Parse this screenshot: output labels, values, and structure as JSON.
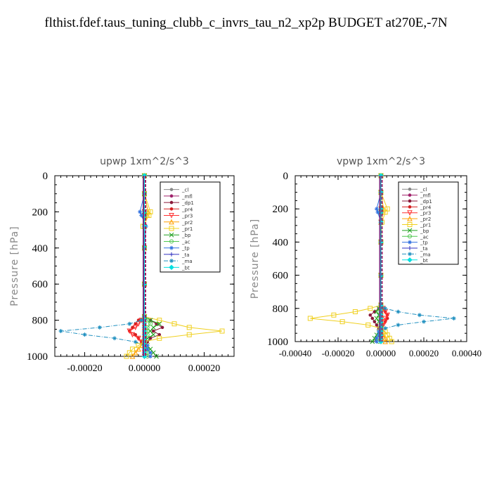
{
  "title": "flthist.fdef.taus_tuning_clubb_c_invrs_tau_n2_xp2p  BUDGET at270E,-7N",
  "chart_data": [
    {
      "type": "line",
      "title": "upwp   1xm^2/s^3",
      "ylabel": "Pressure [hPa]",
      "xlabel": "",
      "xlim": [
        -0.0003,
        0.0003
      ],
      "ylim": [
        1000,
        0
      ],
      "xticks": [
        -0.0002,
        0.0,
        0.0002
      ],
      "xticklabels": [
        "-0.00020",
        "0.00000",
        "0.00020"
      ],
      "yticks": [
        0,
        200,
        400,
        600,
        800,
        1000
      ],
      "yticklabels": [
        "0",
        "200",
        "400",
        "600",
        "800",
        "1000"
      ],
      "legend_position": "top-right",
      "grid": false,
      "y_levels": [
        0,
        100,
        200,
        220,
        280,
        400,
        600,
        780,
        800,
        820,
        840,
        860,
        880,
        900,
        920,
        940,
        960,
        980,
        1000
      ],
      "series": [
        {
          "name": "_cl",
          "color": "#888888",
          "marker": "dot",
          "dash": "solid",
          "values": [
            0,
            0,
            0,
            0,
            0,
            0,
            0,
            0,
            0,
            0,
            0,
            0,
            0,
            0,
            0,
            0,
            0,
            0,
            0
          ]
        },
        {
          "name": "_mfl",
          "color": "#a0206a",
          "marker": "dot",
          "dash": "solid",
          "values": [
            0,
            0,
            0,
            0,
            0,
            0,
            0,
            0,
            0,
            0,
            0,
            0,
            0,
            0,
            0,
            0,
            0,
            0,
            0
          ]
        },
        {
          "name": "_dp1",
          "color": "#8b1a3a",
          "marker": "dot",
          "dash": "solid",
          "values": [
            0,
            0,
            0,
            0,
            0,
            0,
            0,
            0,
            2e-05,
            4e-05,
            6e-05,
            3e-05,
            5e-05,
            2e-05,
            1e-05,
            0,
            0,
            0,
            0
          ]
        },
        {
          "name": "_pr4",
          "color": "#d42020",
          "marker": "dot",
          "dash": "solid",
          "values": [
            0,
            0,
            0,
            0,
            0,
            0,
            0,
            0,
            -2e-05,
            -3e-05,
            -4e-05,
            -5e-05,
            -3e-05,
            -2e-05,
            -1e-05,
            0,
            0,
            0,
            0
          ]
        },
        {
          "name": "_pr3",
          "color": "#ff3030",
          "marker": "triangle-down",
          "dash": "solid",
          "values": [
            0,
            0,
            0,
            0,
            0,
            0,
            0,
            0,
            -1e-05,
            -2e-05,
            -3e-05,
            -5e-05,
            -4e-05,
            -2e-05,
            -1e-05,
            0,
            0,
            0,
            0
          ]
        },
        {
          "name": "_pr2",
          "color": "#ffa000",
          "marker": "triangle",
          "dash": "solid",
          "values": [
            0,
            0,
            1.2e-05,
            1e-05,
            0,
            0,
            0,
            0,
            0,
            0,
            0,
            0,
            0,
            0,
            0,
            -1e-05,
            -2e-05,
            -3e-05,
            -4e-05
          ]
        },
        {
          "name": "_pr1",
          "color": "#f0d020",
          "marker": "square",
          "dash": "solid",
          "values": [
            0,
            0,
            2e-05,
            1.5e-05,
            -5e-06,
            0,
            0,
            0,
            5e-05,
            0.0001,
            0.00015,
            0.00026,
            0.00015,
            5e-05,
            0,
            -2e-05,
            -4e-05,
            -5e-05,
            -6e-05
          ]
        },
        {
          "name": "_bp",
          "color": "#20a020",
          "marker": "x",
          "dash": "solid",
          "values": [
            0,
            0,
            0,
            0,
            0,
            0,
            0,
            0,
            2e-05,
            5e-05,
            3e-05,
            2e-05,
            3e-05,
            1e-05,
            0,
            1e-05,
            2e-05,
            3e-05,
            4e-05
          ]
        },
        {
          "name": "_ac",
          "color": "#50c850",
          "marker": "circle",
          "dash": "solid",
          "values": [
            0,
            0,
            0,
            0,
            0,
            0,
            0,
            0,
            1e-05,
            2e-05,
            1e-05,
            1e-05,
            1e-05,
            0,
            0,
            0,
            1e-05,
            1e-05,
            1e-05
          ]
        },
        {
          "name": "_tp",
          "color": "#3070e0",
          "marker": "star",
          "dash": "solid",
          "values": [
            0,
            0,
            -1.5e-05,
            -1e-05,
            5e-06,
            0,
            0,
            0,
            0,
            0,
            0,
            0,
            0,
            0,
            0,
            1e-05,
            1e-05,
            2e-05,
            2e-05
          ]
        },
        {
          "name": "_ta",
          "color": "#3030c0",
          "marker": "plus",
          "dash": "solid",
          "values": [
            0,
            0,
            0,
            0,
            0,
            0,
            0,
            0,
            0,
            0,
            0,
            0,
            0,
            0,
            0,
            0,
            0,
            0,
            0
          ]
        },
        {
          "name": "_ma",
          "color": "#2090c0",
          "marker": "star",
          "dash": "dashdot",
          "values": [
            0,
            0,
            0,
            0,
            0,
            0,
            0,
            0,
            -1e-05,
            -5e-05,
            -0.00015,
            -0.00028,
            -0.0002,
            -0.0001,
            -3e-05,
            0,
            0,
            0,
            0
          ]
        },
        {
          "name": "_bt",
          "color": "#00e0e0",
          "marker": "diamond",
          "dash": "solid",
          "values": [
            0,
            0,
            0,
            0,
            0,
            0,
            0,
            0,
            0,
            0,
            0,
            0,
            0,
            0,
            0,
            0,
            0,
            0,
            0
          ]
        }
      ]
    },
    {
      "type": "line",
      "title": "vpwp   1xm^2/s^3",
      "ylabel": "Pressure [hPa]",
      "xlabel": "",
      "xlim": [
        -0.0004,
        0.0004
      ],
      "ylim": [
        1000,
        0
      ],
      "xticks": [
        -0.0004,
        -0.0002,
        0.0,
        0.0002,
        0.0004
      ],
      "xticklabels": [
        "-0.00040",
        "-0.00020",
        "0.00000",
        "0.00020",
        "0.00040"
      ],
      "yticks": [
        0,
        200,
        400,
        600,
        800,
        1000
      ],
      "yticklabels": [
        "0",
        "200",
        "400",
        "600",
        "800",
        "1000"
      ],
      "legend_position": "top-right",
      "grid": false,
      "y_levels": [
        0,
        100,
        200,
        220,
        280,
        400,
        600,
        780,
        800,
        820,
        840,
        860,
        880,
        900,
        920,
        940,
        960,
        980,
        1000
      ],
      "series": [
        {
          "name": "_cl",
          "color": "#888888",
          "marker": "dot",
          "dash": "solid",
          "values": [
            0,
            0,
            0,
            0,
            0,
            0,
            0,
            0,
            0,
            0,
            0,
            0,
            0,
            0,
            0,
            0,
            0,
            0,
            0
          ]
        },
        {
          "name": "_mfl",
          "color": "#a0206a",
          "marker": "dot",
          "dash": "solid",
          "values": [
            0,
            0,
            0,
            0,
            0,
            0,
            0,
            0,
            0,
            0,
            0,
            0,
            0,
            0,
            0,
            0,
            0,
            0,
            0
          ]
        },
        {
          "name": "_dp1",
          "color": "#8b1a3a",
          "marker": "dot",
          "dash": "solid",
          "values": [
            0,
            0,
            0,
            0,
            0,
            0,
            0,
            0,
            -1e-05,
            -3e-05,
            -5e-05,
            -4e-05,
            -3e-05,
            -2e-05,
            -1e-05,
            0,
            0,
            0,
            0
          ]
        },
        {
          "name": "_pr4",
          "color": "#d42020",
          "marker": "dot",
          "dash": "solid",
          "values": [
            0,
            0,
            0,
            0,
            0,
            0,
            0,
            0,
            1e-05,
            2e-05,
            3e-05,
            3e-05,
            2e-05,
            1e-05,
            0,
            0,
            0,
            0,
            0
          ]
        },
        {
          "name": "_pr3",
          "color": "#ff3030",
          "marker": "triangle-down",
          "dash": "solid",
          "values": [
            0,
            0,
            0,
            0,
            0,
            0,
            0,
            0,
            1e-05,
            2e-05,
            3e-05,
            2e-05,
            2e-05,
            1e-05,
            0,
            0,
            0,
            0,
            0
          ]
        },
        {
          "name": "_pr2",
          "color": "#ffa000",
          "marker": "triangle",
          "dash": "solid",
          "values": [
            0,
            0,
            1.2e-05,
            1e-05,
            0,
            0,
            0,
            0,
            0,
            0,
            0,
            0,
            0,
            0,
            0,
            1e-05,
            1e-05,
            2e-05,
            2e-05
          ]
        },
        {
          "name": "_pr1",
          "color": "#f0d020",
          "marker": "square",
          "dash": "solid",
          "values": [
            0,
            0,
            3e-05,
            2e-05,
            5e-06,
            0,
            0,
            0,
            -5e-05,
            -0.00012,
            -0.00022,
            -0.00033,
            -0.00018,
            -6e-05,
            0,
            2e-05,
            3e-05,
            4e-05,
            5e-05
          ]
        },
        {
          "name": "_bp",
          "color": "#20a020",
          "marker": "x",
          "dash": "solid",
          "values": [
            0,
            0,
            0,
            0,
            0,
            0,
            0,
            0,
            -1e-05,
            -2e-05,
            -1e-05,
            -2e-05,
            -1e-05,
            0,
            0,
            -1e-05,
            -2e-05,
            -3e-05,
            -4e-05
          ]
        },
        {
          "name": "_ac",
          "color": "#50c850",
          "marker": "circle",
          "dash": "solid",
          "values": [
            0,
            0,
            0,
            0,
            0,
            0,
            0,
            0,
            0,
            -1e-05,
            0,
            -1e-05,
            0,
            0,
            0,
            0,
            -1e-05,
            -1e-05,
            -1e-05
          ]
        },
        {
          "name": "_tp",
          "color": "#3070e0",
          "marker": "star",
          "dash": "solid",
          "values": [
            0,
            0,
            -2e-05,
            -1.5e-05,
            0,
            0,
            0,
            0,
            0,
            0,
            0,
            0,
            0,
            0,
            0,
            -1e-05,
            -1e-05,
            -2e-05,
            -2e-05
          ]
        },
        {
          "name": "_ta",
          "color": "#3030c0",
          "marker": "plus",
          "dash": "solid",
          "values": [
            0,
            0,
            0,
            0,
            0,
            0,
            0,
            0,
            0,
            0,
            0,
            0,
            0,
            0,
            0,
            0,
            0,
            0,
            0
          ]
        },
        {
          "name": "_ma",
          "color": "#2090c0",
          "marker": "star",
          "dash": "dashdot",
          "values": [
            0,
            0,
            0,
            0,
            0,
            0,
            0,
            0,
            2e-05,
            8e-05,
            0.00018,
            0.00034,
            0.0002,
            8e-05,
            2e-05,
            0,
            0,
            0,
            0
          ]
        },
        {
          "name": "_bt",
          "color": "#00e0e0",
          "marker": "diamond",
          "dash": "solid",
          "values": [
            0,
            0,
            0,
            0,
            0,
            0,
            0,
            0,
            0,
            0,
            0,
            0,
            0,
            0,
            0,
            0,
            0,
            0,
            0
          ]
        }
      ]
    }
  ]
}
